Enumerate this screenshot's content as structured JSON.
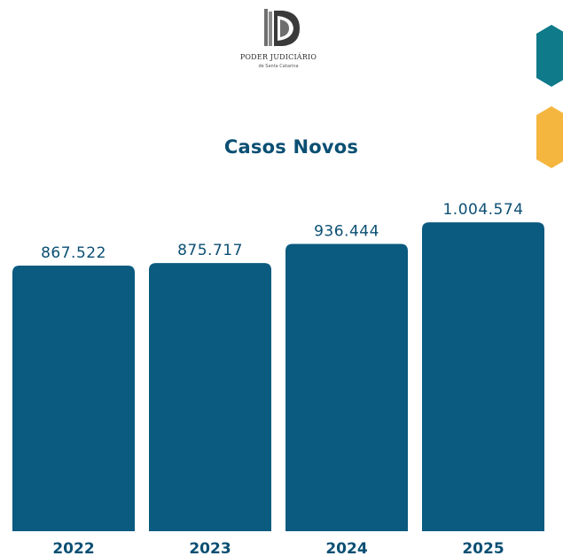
{
  "logo": {
    "line1": "PODER JUDICIÁRIO",
    "line2": "de Santa Catarina"
  },
  "colors": {
    "bar": "#0b5a7f",
    "text": "#0b4f73",
    "accent_teal": "#0f7a8a",
    "accent_orange": "#f5b640"
  },
  "chart_data": {
    "type": "bar",
    "title": "Casos Novos",
    "xlabel": "",
    "ylabel": "",
    "categories": [
      "2022",
      "2023",
      "2024",
      "2025"
    ],
    "values": [
      867522,
      875717,
      936444,
      1004574
    ],
    "value_labels": [
      "867.522",
      "875.717",
      "936.444",
      "1.004.574"
    ],
    "ylim": [
      0,
      1050000
    ],
    "grid": false,
    "legend": "none"
  }
}
